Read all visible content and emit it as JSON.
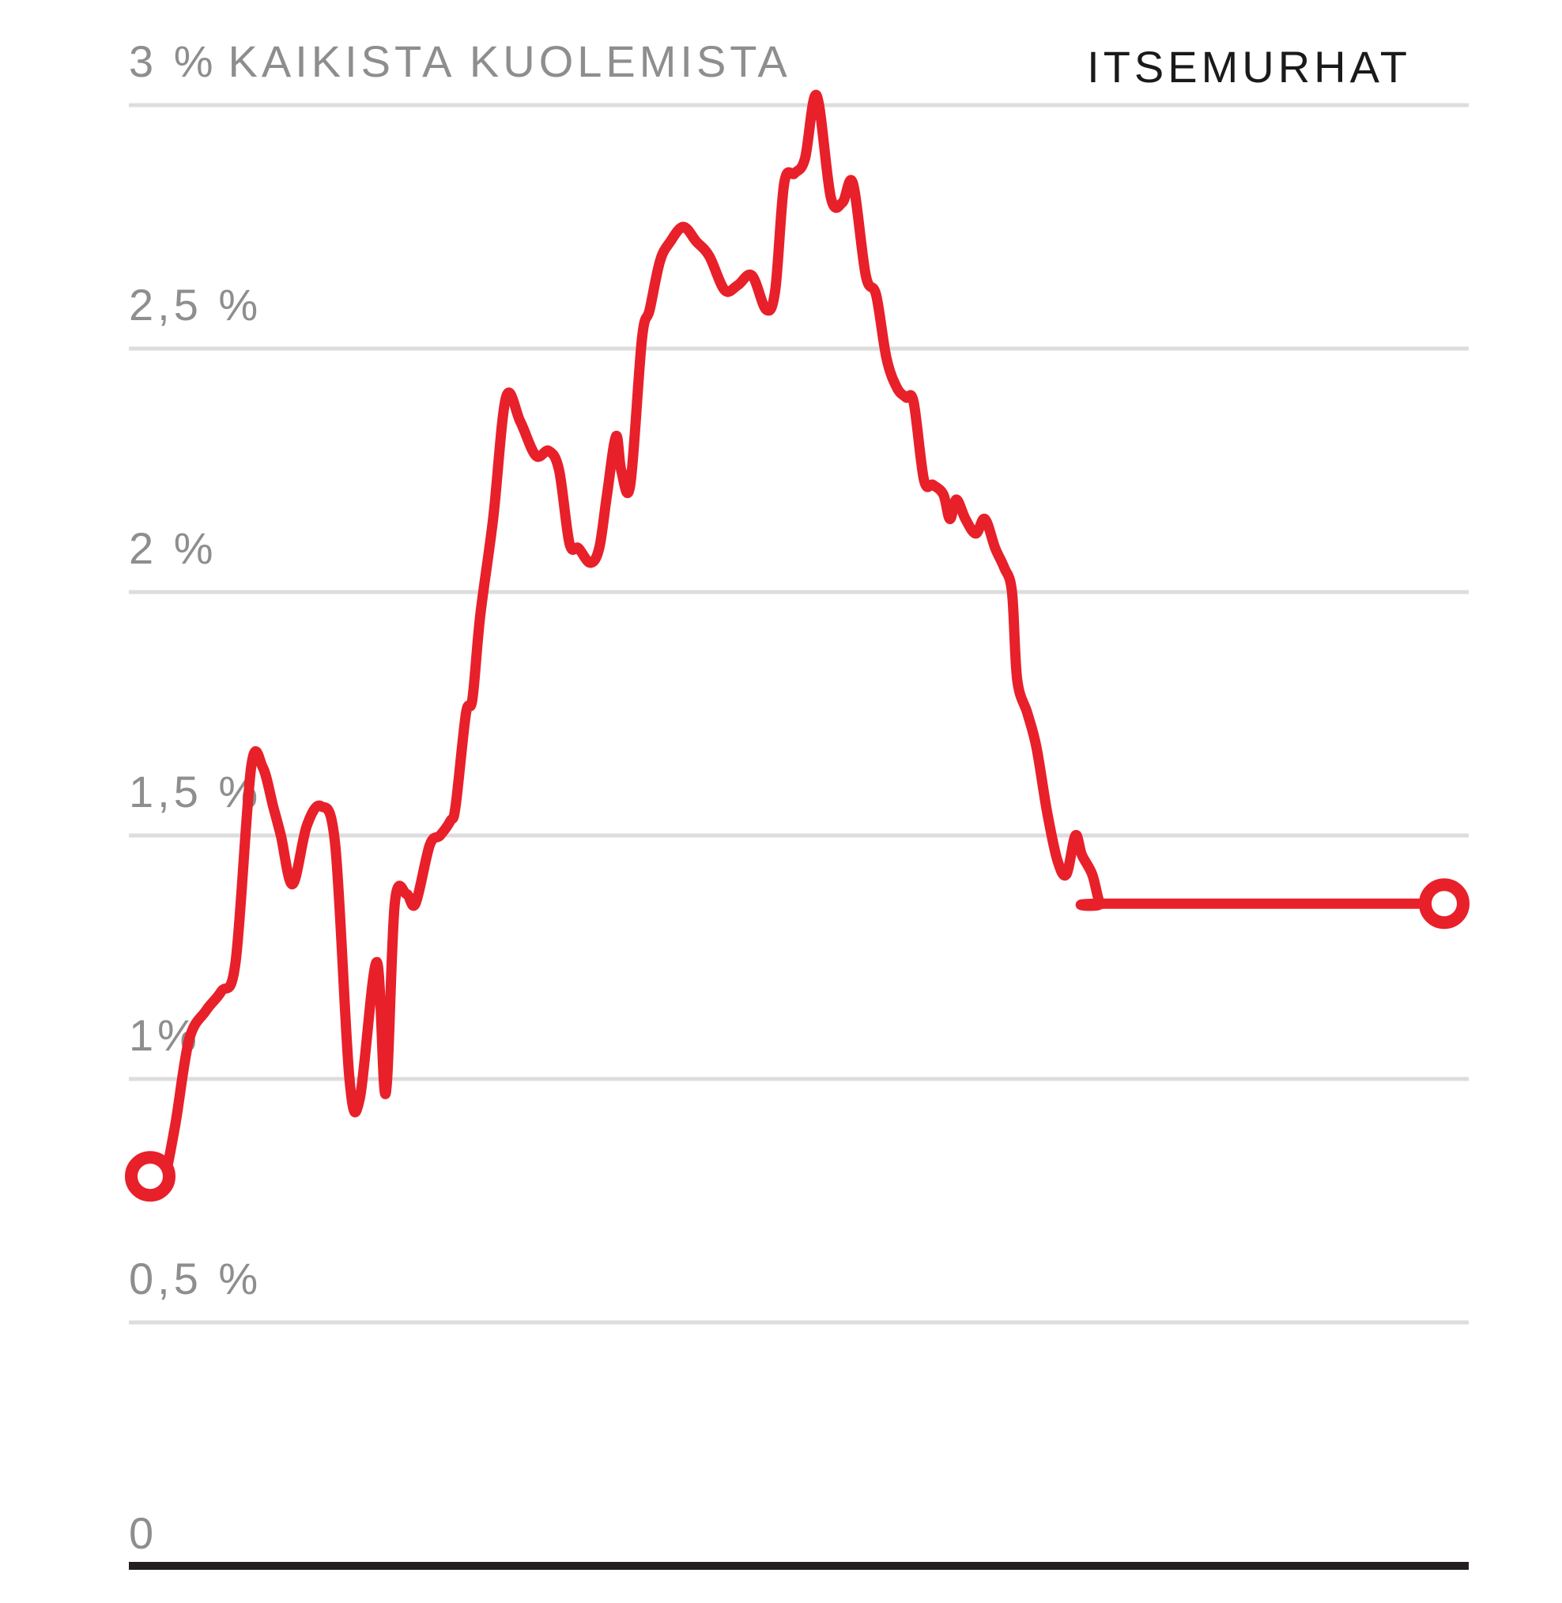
{
  "chart_data": {
    "type": "line",
    "title": "ITSEMURHAT",
    "unit_label": "KAIKISTA KUOLEMISTA",
    "xlabel": "",
    "ylabel": "",
    "ylim": [
      0,
      3
    ],
    "xlim": [
      0,
      1
    ],
    "grid": true,
    "y_ticks": [
      {
        "value": 3,
        "label": "3 %"
      },
      {
        "value": 2.5,
        "label": "2,5 %"
      },
      {
        "value": 2,
        "label": "2 %"
      },
      {
        "value": 1.5,
        "label": "1,5 %"
      },
      {
        "value": 1,
        "label": "1%"
      },
      {
        "value": 0.5,
        "label": "0,5 %"
      },
      {
        "value": 0,
        "label": "0"
      }
    ],
    "series": [
      {
        "color": "#e8202a",
        "x": [
          0,
          0.009,
          0.019,
          0.03,
          0.043,
          0.055,
          0.066,
          0.078,
          0.087,
          0.095,
          0.101,
          0.11,
          0.121,
          0.132,
          0.143,
          0.154,
          0.162,
          0.175,
          0.182,
          0.189,
          0.198,
          0.205,
          0.216,
          0.224,
          0.232,
          0.236,
          0.244,
          0.249,
          0.255,
          0.265,
          0.275,
          0.286,
          0.298,
          0.308,
          0.316,
          0.324,
          0.331,
          0.34,
          0.347,
          0.353,
          0.36,
          0.364,
          0.371,
          0.38,
          0.386,
          0.394,
          0.402,
          0.412,
          0.422,
          0.432,
          0.444,
          0.454,
          0.465,
          0.476,
          0.483,
          0.49,
          0.498,
          0.506,
          0.515,
          0.526,
          0.535,
          0.543,
          0.553,
          0.561,
          0.569,
          0.577,
          0.584,
          0.59,
          0.598,
          0.605,
          0.613,
          0.618,
          0.623,
          0.63,
          0.638,
          0.645,
          0.653,
          0.66,
          0.666,
          0.67,
          0.678,
          0.685,
          0.693,
          0.701,
          0.708,
          0.715,
          0.72,
          0.728,
          0.734,
          0.74,
          0.746,
          0.752,
          0.759,
          0.765,
          0.772,
          0.779,
          0.786,
          0.793,
          0.8,
          0.807,
          0.813,
          0.821,
          0.827,
          0.835,
          0.841,
          0.848,
          0.854,
          0.861,
          0.868,
          0.876,
          0.883,
          0.89,
          0.898,
          0.906,
          0.914,
          0.921,
          0.928,
          0.935,
          0.941,
          0.949,
          0.955,
          0.962,
          0.968,
          0.974,
          0.979,
          0.985,
          1.0
        ],
        "values": [
          0.8,
          0.78,
          0.9,
          1.08,
          1.14,
          1.18,
          1.24,
          1.64,
          1.64,
          1.56,
          1.5,
          1.4,
          1.52,
          1.56,
          1.48,
          1.0,
          0.96,
          1.24,
          0.97,
          1.36,
          1.38,
          1.36,
          1.48,
          1.5,
          1.53,
          1.56,
          1.75,
          1.78,
          1.95,
          2.15,
          2.4,
          2.35,
          2.28,
          2.29,
          2.25,
          2.1,
          2.09,
          2.06,
          2.09,
          2.2,
          2.32,
          2.25,
          2.22,
          2.52,
          2.58,
          2.68,
          2.72,
          2.75,
          2.72,
          2.69,
          2.62,
          2.63,
          2.65,
          2.58,
          2.62,
          2.84,
          2.86,
          2.89,
          3.02,
          2.81,
          2.8,
          2.84,
          2.65,
          2.61,
          2.48,
          2.42,
          2.4,
          2.39,
          2.23,
          2.22,
          2.2,
          2.15,
          2.19,
          2.15,
          2.12,
          2.15,
          2.09,
          2.05,
          2.0,
          1.82,
          1.75,
          1.68,
          1.55,
          1.45,
          1.42,
          1.5,
          1.46,
          1.42,
          1.36,
          1.36,
          1.36,
          1.36,
          1.36,
          1.36,
          1.36,
          1.36,
          1.36,
          1.36,
          1.36,
          1.36,
          1.36,
          1.36,
          1.36,
          1.36,
          1.36,
          1.36,
          1.36,
          1.36,
          1.36,
          1.36,
          1.36,
          1.36,
          1.36,
          1.36,
          1.36,
          1.36,
          1.36,
          1.36,
          1.36,
          1.36,
          1.36,
          1.36,
          1.36,
          1.36,
          1.36,
          1.36,
          1.36
        ]
      }
    ]
  }
}
